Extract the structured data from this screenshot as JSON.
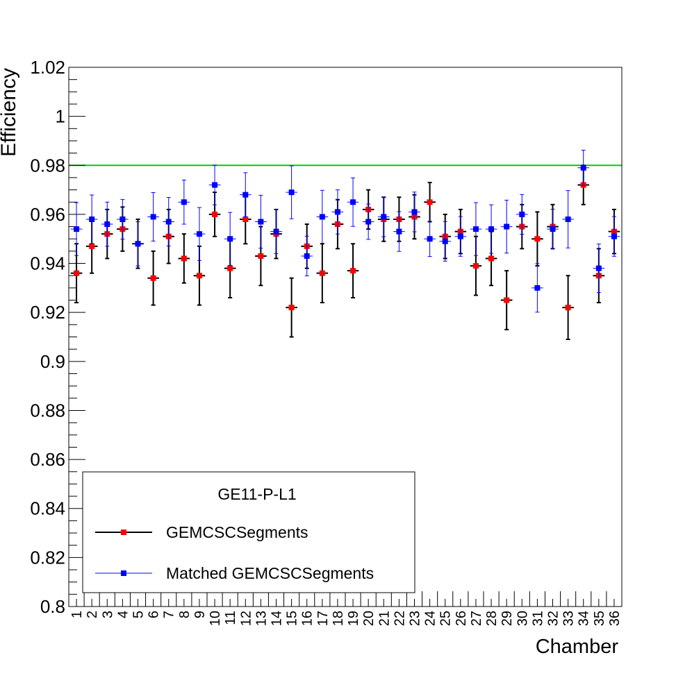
{
  "chart_data": {
    "type": "scatter",
    "xlabel": "Chamber",
    "ylabel": "Efficiency",
    "ylim": [
      0.8,
      1.02
    ],
    "xlim": [
      0.5,
      36.5
    ],
    "grid": false,
    "categories": [
      "1",
      "2",
      "3",
      "4",
      "5",
      "6",
      "7",
      "8",
      "9",
      "10",
      "11",
      "12",
      "13",
      "14",
      "15",
      "16",
      "17",
      "18",
      "19",
      "20",
      "21",
      "22",
      "23",
      "24",
      "25",
      "26",
      "27",
      "28",
      "29",
      "30",
      "31",
      "32",
      "33",
      "34",
      "35",
      "36"
    ],
    "yticks": [
      "0.8",
      "0.82",
      "0.84",
      "0.86",
      "0.88",
      "0.9",
      "0.92",
      "0.94",
      "0.96",
      "0.98",
      "1",
      "1.02"
    ],
    "reference_line": {
      "y": 0.98,
      "color": "#00cc00"
    },
    "legend": {
      "placement": "bottom-left",
      "header": "GE11-P-L1",
      "entries": [
        "GEMCSCSegments",
        "Matched GEMCSCSegments"
      ]
    },
    "series": [
      {
        "name": "GEMCSCSegments",
        "marker_color": "#ff0000",
        "line_color": "#000000",
        "values": [
          0.936,
          0.947,
          0.952,
          0.954,
          0.948,
          0.934,
          0.951,
          0.942,
          0.935,
          0.96,
          0.938,
          0.958,
          0.943,
          0.952,
          0.922,
          0.947,
          0.936,
          0.956,
          0.937,
          0.962,
          0.958,
          0.958,
          0.959,
          0.965,
          0.951,
          0.953,
          0.939,
          0.942,
          0.925,
          0.955,
          0.95,
          0.955,
          0.922,
          0.972,
          0.935,
          0.953
        ],
        "errors": [
          0.012,
          0.011,
          0.01,
          0.009,
          0.01,
          0.011,
          0.011,
          0.01,
          0.012,
          0.009,
          0.012,
          0.01,
          0.012,
          0.01,
          0.012,
          0.009,
          0.012,
          0.01,
          0.011,
          0.008,
          0.009,
          0.009,
          0.009,
          0.008,
          0.009,
          0.009,
          0.012,
          0.011,
          0.012,
          0.009,
          0.011,
          0.009,
          0.013,
          0.008,
          0.011,
          0.009
        ]
      },
      {
        "name": "Matched GEMCSCSegments",
        "marker_color": "#0000ff",
        "line_color": "#0000ff",
        "values": [
          0.954,
          0.958,
          0.956,
          0.958,
          0.948,
          0.959,
          0.957,
          0.965,
          0.952,
          0.972,
          0.95,
          0.968,
          0.957,
          0.953,
          0.969,
          0.943,
          0.959,
          0.961,
          0.965,
          0.957,
          0.959,
          0.953,
          0.961,
          0.95,
          0.949,
          0.951,
          0.954,
          0.954,
          0.955,
          0.96,
          0.93,
          0.954,
          0.958,
          0.979,
          0.938,
          0.951
        ]
      }
    ]
  }
}
